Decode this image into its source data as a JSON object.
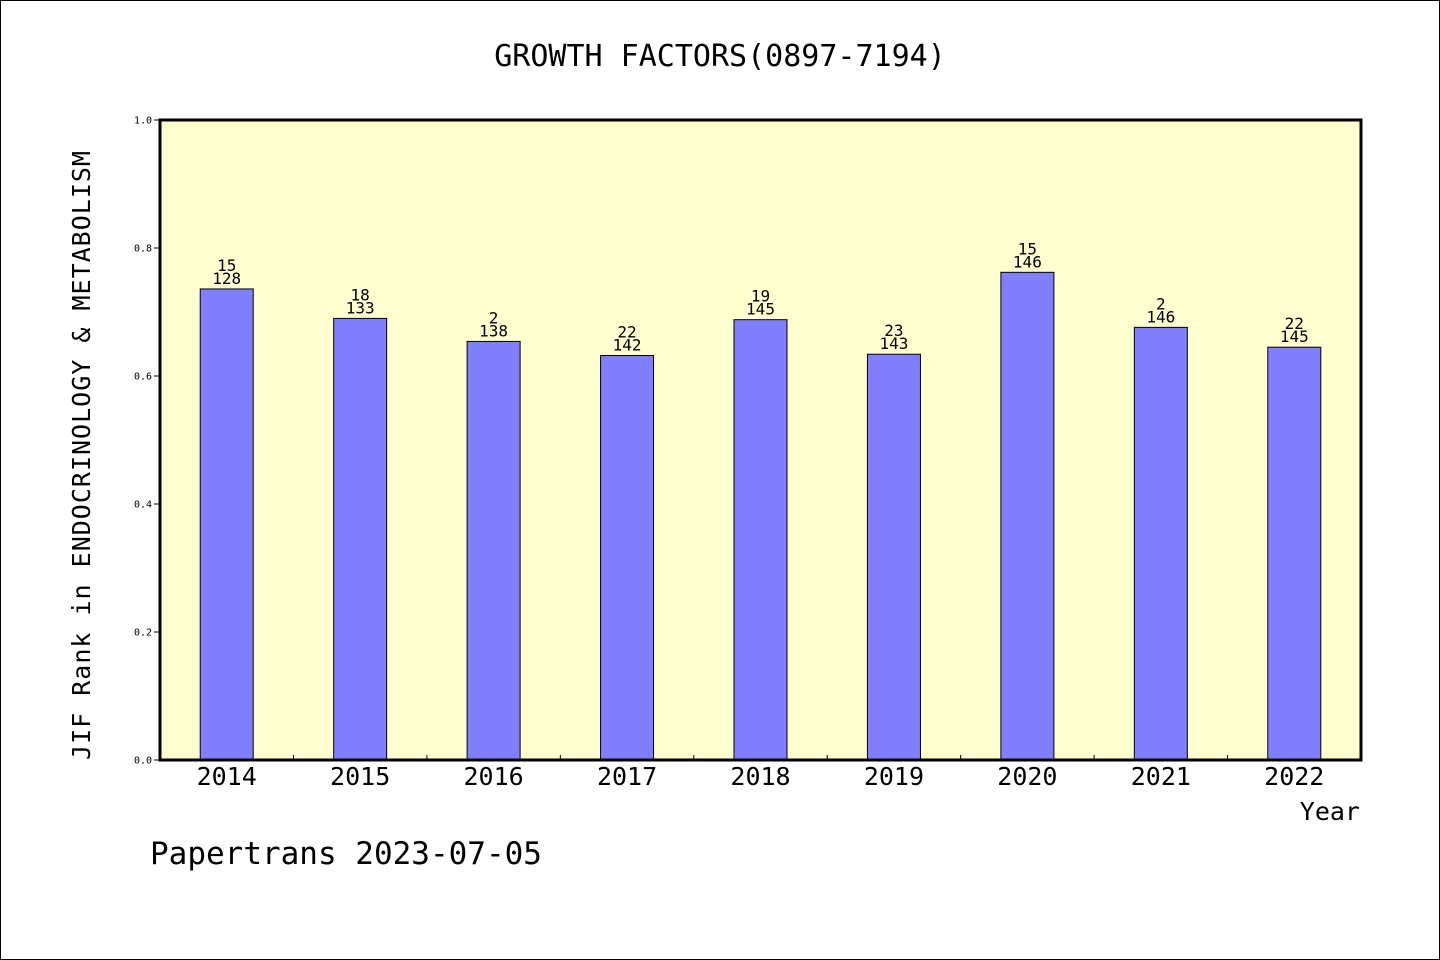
{
  "chart_data": {
    "type": "bar",
    "title": "GROWTH FACTORS(0897-7194)",
    "xlabel": "Year",
    "ylabel": "JIF Rank in ENDOCRINOLOGY & METABOLISM",
    "ylim": [
      0,
      1.0
    ],
    "yticks": [
      "0.0",
      "0.2",
      "0.4",
      "0.6",
      "0.8",
      "1.0"
    ],
    "categories": [
      "2014",
      "2015",
      "2016",
      "2017",
      "2018",
      "2019",
      "2020",
      "2021",
      "2022"
    ],
    "values": [
      0.736,
      0.69,
      0.654,
      0.632,
      0.688,
      0.634,
      0.762,
      0.676,
      0.645
    ],
    "rank_labels": [
      "15",
      "18",
      "2",
      "22",
      "19",
      "23",
      "15",
      "2",
      "22"
    ],
    "total_labels": [
      "128",
      "133",
      "138",
      "142",
      "145",
      "143",
      "146",
      "146",
      "145"
    ],
    "grid": false,
    "colors": {
      "plot_background": "#ffffd0",
      "bar_fill": "#8080ff",
      "bar_stroke": "#000000"
    }
  },
  "footer": {
    "text": "Papertrans 2023-07-05"
  }
}
